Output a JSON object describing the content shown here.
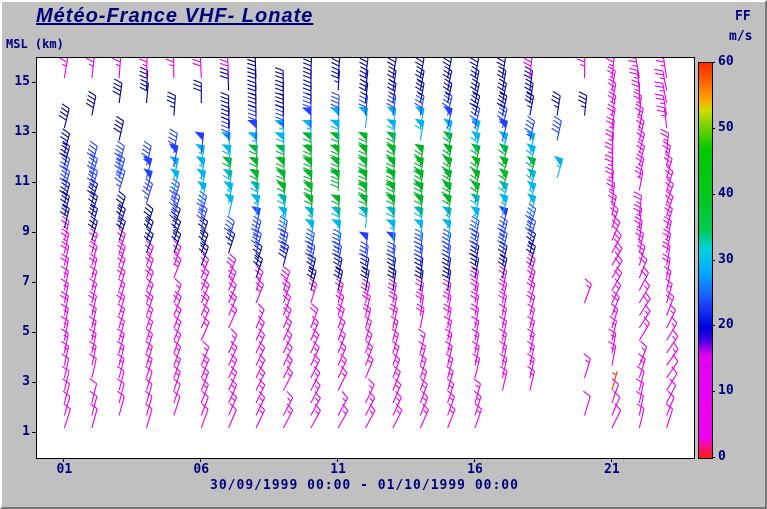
{
  "window": {
    "background": "#c0c0c0",
    "accent_navy": "#00007d"
  },
  "chart_data": {
    "type": "scatter",
    "subtype": "wind-barb-time-height-profile",
    "title": "Météo-France VHF- Lonate",
    "xlabel": "30/09/1999 00:00 - 01/10/1999 00:00",
    "ylabel": "MSL (km)",
    "x_hours_range": [
      0,
      24
    ],
    "x_tick_hours": [
      1,
      6,
      11,
      16,
      21
    ],
    "x_tick_labels": [
      "01",
      "06",
      "11",
      "16",
      "21"
    ],
    "y_km_ticks": [
      1,
      3,
      5,
      7,
      9,
      11,
      13,
      15
    ],
    "y_km_range": [
      0,
      16
    ],
    "grid": {
      "hour_start": 1,
      "hour_end": 23,
      "hour_step": 1,
      "alt_start_km": 1.2,
      "alt_end_km": 15.2,
      "alt_step_km": 0.5
    },
    "speed_profile_kmms": [
      [
        1,
        8
      ],
      [
        4,
        9
      ],
      [
        5,
        10
      ],
      [
        6,
        13
      ],
      [
        7,
        17
      ],
      [
        8,
        22
      ],
      [
        9,
        27
      ],
      [
        10,
        33
      ],
      [
        11,
        39
      ],
      [
        12,
        34
      ],
      [
        13,
        26
      ],
      [
        14,
        20
      ],
      [
        15,
        17
      ],
      [
        16,
        16
      ]
    ],
    "time_modulation": {
      "peak_hour": 12.5,
      "core_alt_range": [
        6,
        13.5
      ],
      "core_width_h": 7,
      "core_base": 0.55,
      "core_amp": 0.55,
      "outer_width_h": 6,
      "outer_base": 0.85,
      "outer_amp": 0.15
    },
    "right_side_cap": {
      "from_hour": 20.7,
      "max_speed": 13
    },
    "topleft_boost": {
      "hour_max": 3.5,
      "alt_range": [
        12.6,
        14.6
      ],
      "min_speed": 21
    },
    "overrides": [
      {
        "hour": 21,
        "alt_km": 2.7,
        "speed": 1.5
      }
    ],
    "direction_model": {
      "base_deg": 66,
      "alt_slope_deg_per_km": 1.3,
      "wobble_amp_deg": 7
    },
    "barb_units": {
      "flag_ms": 25,
      "full_ms": 5,
      "half_ms": 2.5
    },
    "speed_color_bands": [
      {
        "max": 3,
        "color": "#ff3200"
      },
      {
        "max": 15.5,
        "color": "#e600e6"
      },
      {
        "max": 21,
        "color": "#000096"
      },
      {
        "max": 26,
        "color": "#2340ff"
      },
      {
        "max": 32,
        "color": "#00b4f0"
      },
      {
        "max": 47,
        "color": "#00b428"
      },
      {
        "max": 53,
        "color": "#a0d200"
      },
      {
        "max": 58,
        "color": "#ff8c00"
      },
      {
        "max": 999,
        "color": "#ff3200"
      }
    ],
    "gap_rules": [
      {
        "h": [
          0,
          6.5
        ],
        "alt": [
          11.8,
          14.8
        ],
        "keep": 0.3
      },
      {
        "h": [
          18.6,
          20.4
        ],
        "alt": [
          0,
          12.8
        ],
        "keep": 0.12
      },
      {
        "h": [
          18.6,
          20.4
        ],
        "alt": [
          12.8,
          16
        ],
        "keep": 0.55
      },
      {
        "h": [
          16.6,
          20.4
        ],
        "alt": [
          0,
          2.4
        ],
        "keep": 0.2
      },
      {
        "h": [
          2.5,
          5.5
        ],
        "alt": [
          0,
          1.5
        ],
        "keep": 0.5
      }
    ],
    "colorbar": {
      "label": "FF",
      "units": "m/s",
      "min": 0,
      "max": 60,
      "ticks": [
        0,
        10,
        20,
        30,
        40,
        50,
        60
      ],
      "gradient_stops": [
        [
          0.0,
          "#ff1e00"
        ],
        [
          0.05,
          "#f000f0"
        ],
        [
          0.26,
          "#e000f0"
        ],
        [
          0.3,
          "#3c00e6"
        ],
        [
          0.33,
          "#0000dc"
        ],
        [
          0.4,
          "#1e50ff"
        ],
        [
          0.47,
          "#00aaff"
        ],
        [
          0.53,
          "#00d2dc"
        ],
        [
          0.58,
          "#00c850"
        ],
        [
          0.66,
          "#00c81e"
        ],
        [
          0.78,
          "#00c800"
        ],
        [
          0.84,
          "#78d200"
        ],
        [
          0.88,
          "#d2dc00"
        ],
        [
          0.91,
          "#ffa000"
        ],
        [
          0.96,
          "#ff5a00"
        ],
        [
          1.0,
          "#ff2800"
        ]
      ]
    }
  }
}
